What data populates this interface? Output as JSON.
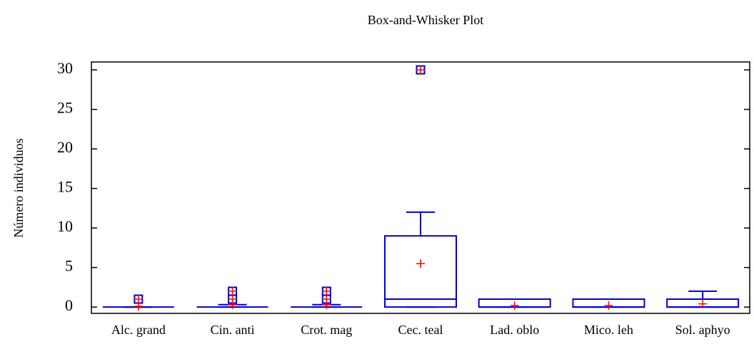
{
  "chart_data": {
    "type": "box",
    "title": "Box-and-Whisker Plot",
    "y_label": "Número individuos",
    "categories": [
      "Alc. grand",
      "Cin. anti",
      "Crot. mag",
      "Cec. teal",
      "Lad. oblo",
      "Mico. leh",
      "Sol. aphyo"
    ],
    "boxes": [
      {
        "min": 0,
        "q1": 0,
        "median": 0,
        "q3": 0,
        "max": 0,
        "mean": 0.1,
        "outliers": [
          1
        ]
      },
      {
        "min": 0,
        "q1": 0,
        "median": 0,
        "q3": 0,
        "max": 0.3,
        "mean": 0.3,
        "outliers": [
          1,
          2
        ]
      },
      {
        "min": 0,
        "q1": 0,
        "median": 0,
        "q3": 0,
        "max": 0.3,
        "mean": 0.3,
        "outliers": [
          1,
          2
        ]
      },
      {
        "min": 0,
        "q1": 0,
        "median": 1,
        "q3": 9,
        "max": 12,
        "mean": 5.5,
        "outliers": [
          30
        ]
      },
      {
        "min": 0,
        "q1": 0,
        "median": 0,
        "q3": 1,
        "max": 1,
        "mean": 0.2,
        "outliers": []
      },
      {
        "min": 0,
        "q1": 0,
        "median": 0,
        "q3": 1,
        "max": 1,
        "mean": 0.2,
        "outliers": []
      },
      {
        "min": 0,
        "q1": 0,
        "median": 0,
        "q3": 1,
        "max": 2,
        "mean": 0.4,
        "outliers": []
      }
    ],
    "color": "#0000cc",
    "mean_color": "#ff0000",
    "ylim": [
      -0.8,
      31
    ],
    "yticks": [
      0,
      5,
      10,
      15,
      20,
      25,
      30
    ],
    "grid": false
  }
}
